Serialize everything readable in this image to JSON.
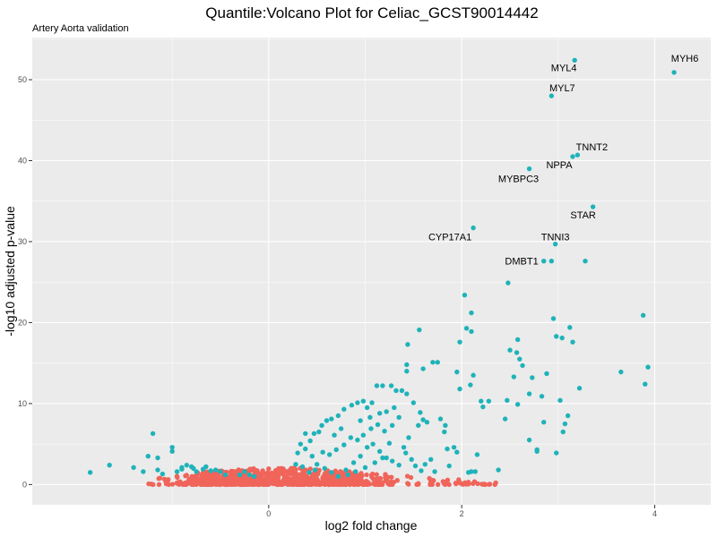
{
  "chart_data": {
    "type": "scatter",
    "title": "Quantile:Volcano Plot for Celiac_GCST90014442",
    "subtitle": "Artery Aorta validation",
    "xlabel": "log2 fold change",
    "ylabel": "-log10 adjusted p-value",
    "xlim": [
      -2.45,
      4.58
    ],
    "ylim": [
      -2.5,
      55.2
    ],
    "x_ticks": [
      0,
      2,
      4
    ],
    "y_ticks": [
      0,
      10,
      20,
      30,
      40,
      50
    ],
    "grid": true,
    "legend": "none",
    "colors": {
      "significant": "#1EB3B9",
      "not_significant": "#F0645A",
      "panel": "#EBEBEB",
      "grid": "#ffffff"
    },
    "labeled_points": [
      {
        "label": "MYH6",
        "x": 4.2,
        "y": 50.9
      },
      {
        "label": "MYL4",
        "x": 3.17,
        "y": 52.4
      },
      {
        "label": "MYL7",
        "x": 2.93,
        "y": 48.0
      },
      {
        "label": "TNNT2",
        "x": 3.2,
        "y": 40.7
      },
      {
        "label": "NPPA",
        "x": 3.15,
        "y": 40.5
      },
      {
        "label": "MYBPC3",
        "x": 2.7,
        "y": 39.0
      },
      {
        "label": "STAR",
        "x": 3.36,
        "y": 34.3
      },
      {
        "label": "CYP17A1",
        "x": 2.12,
        "y": 31.7
      },
      {
        "label": "TNNI3",
        "x": 2.97,
        "y": 29.7
      },
      {
        "label": "DMBT1",
        "x": 2.85,
        "y": 27.6
      }
    ],
    "significant_points": [
      [
        2.93,
        27.6
      ],
      [
        3.28,
        27.6
      ],
      [
        2.48,
        24.9
      ],
      [
        2.03,
        23.4
      ],
      [
        2.1,
        21.2
      ],
      [
        2.05,
        19.3
      ],
      [
        2.1,
        18.9
      ],
      [
        2.95,
        20.5
      ],
      [
        3.12,
        19.4
      ],
      [
        2.98,
        18.3
      ],
      [
        3.04,
        18.1
      ],
      [
        3.15,
        17.6
      ],
      [
        3.88,
        20.9
      ],
      [
        1.56,
        19.1
      ],
      [
        1.44,
        17.3
      ],
      [
        1.98,
        17.6
      ],
      [
        2.58,
        17.9
      ],
      [
        2.5,
        16.6
      ],
      [
        2.57,
        16.3
      ],
      [
        2.6,
        15.5
      ],
      [
        2.63,
        14.7
      ],
      [
        2.54,
        13.3
      ],
      [
        2.73,
        13.2
      ],
      [
        2.88,
        13.7
      ],
      [
        3.65,
        13.9
      ],
      [
        3.93,
        14.5
      ],
      [
        3.9,
        12.4
      ],
      [
        1.7,
        15.1
      ],
      [
        1.75,
        15.1
      ],
      [
        1.43,
        14.8
      ],
      [
        1.43,
        14.0
      ],
      [
        1.6,
        14.3
      ],
      [
        1.95,
        13.9
      ],
      [
        2.12,
        13.5
      ],
      [
        2.09,
        12.3
      ],
      [
        1.98,
        11.8
      ],
      [
        2.2,
        10.3
      ],
      [
        2.28,
        10.3
      ],
      [
        2.22,
        9.6
      ],
      [
        2.47,
        10.4
      ],
      [
        2.7,
        11.2
      ],
      [
        2.83,
        10.9
      ],
      [
        3.02,
        10.4
      ],
      [
        3.22,
        11.9
      ],
      [
        2.58,
        9.9
      ],
      [
        2.45,
        8.1
      ],
      [
        2.85,
        7.7
      ],
      [
        3.07,
        7.5
      ],
      [
        3.1,
        8.5
      ],
      [
        3.05,
        6.5
      ],
      [
        2.7,
        5.5
      ],
      [
        2.78,
        4.3
      ],
      [
        2.98,
        3.9
      ],
      [
        2.78,
        4.1
      ],
      [
        2.38,
        1.8
      ],
      [
        2.16,
        3.7
      ],
      [
        2.14,
        1.6
      ],
      [
        2.07,
        1.5
      ],
      [
        2.1,
        1.6
      ],
      [
        1.87,
        2.3
      ],
      [
        1.95,
        4.0
      ],
      [
        1.92,
        4.6
      ],
      [
        1.85,
        4.4
      ],
      [
        1.83,
        7.3
      ],
      [
        1.78,
        8.1
      ],
      [
        1.82,
        6.5
      ],
      [
        1.6,
        8.0
      ],
      [
        1.64,
        7.7
      ],
      [
        1.55,
        7.3
      ],
      [
        1.57,
        8.9
      ],
      [
        1.5,
        10.1
      ],
      [
        1.43,
        11.2
      ],
      [
        1.38,
        11.6
      ],
      [
        1.32,
        11.6
      ],
      [
        1.27,
        12.2
      ],
      [
        1.18,
        12.2
      ],
      [
        1.12,
        12.2
      ],
      [
        1.07,
        10.1
      ],
      [
        1.02,
        9.5
      ],
      [
        0.98,
        10.3
      ],
      [
        0.92,
        10.1
      ],
      [
        0.86,
        9.8
      ],
      [
        0.78,
        9.3
      ],
      [
        0.72,
        8.5
      ],
      [
        0.65,
        8.1
      ],
      [
        0.6,
        7.9
      ],
      [
        0.55,
        7.3
      ],
      [
        0.52,
        6.5
      ],
      [
        0.47,
        6.3
      ],
      [
        0.43,
        5.4
      ],
      [
        0.38,
        6.3
      ],
      [
        0.33,
        5.0
      ],
      [
        0.3,
        3.9
      ],
      [
        0.38,
        4.4
      ],
      [
        0.45,
        3.5
      ],
      [
        0.5,
        2.5
      ],
      [
        0.58,
        2.0
      ],
      [
        0.65,
        1.5
      ],
      [
        0.72,
        1.0
      ],
      [
        0.8,
        1.8
      ],
      [
        0.88,
        2.7
      ],
      [
        0.95,
        3.5
      ],
      [
        1.02,
        4.6
      ],
      [
        1.08,
        5.0
      ],
      [
        1.15,
        4.1
      ],
      [
        1.22,
        3.3
      ],
      [
        1.28,
        2.9
      ],
      [
        1.35,
        2.4
      ],
      [
        1.42,
        3.9
      ],
      [
        1.48,
        3.1
      ],
      [
        1.52,
        2.3
      ],
      [
        1.58,
        1.7
      ],
      [
        1.62,
        2.5
      ],
      [
        1.68,
        3.1
      ],
      [
        1.72,
        1.6
      ],
      [
        1.35,
        8.3
      ],
      [
        1.28,
        7.3
      ],
      [
        1.2,
        6.6
      ],
      [
        1.13,
        7.4
      ],
      [
        1.06,
        6.9
      ],
      [
        0.98,
        6.1
      ],
      [
        0.92,
        5.5
      ],
      [
        0.85,
        5.8
      ],
      [
        0.78,
        4.9
      ],
      [
        0.7,
        4.3
      ],
      [
        0.63,
        3.7
      ],
      [
        0.56,
        4.0
      ],
      [
        0.48,
        1.8
      ],
      [
        0.42,
        1.5
      ],
      [
        0.35,
        2.2
      ],
      [
        0.28,
        2.5
      ],
      [
        1.45,
        5.8
      ],
      [
        1.4,
        4.6
      ],
      [
        1.25,
        5.1
      ],
      [
        1.18,
        3.3
      ],
      [
        1.1,
        2.7
      ],
      [
        1.0,
        2.1
      ],
      [
        0.9,
        1.6
      ],
      [
        0.82,
        1.2
      ],
      [
        1.3,
        9.5
      ],
      [
        1.22,
        9.0
      ],
      [
        1.15,
        8.8
      ],
      [
        1.05,
        8.3
      ],
      [
        0.95,
        7.9
      ],
      [
        0.75,
        6.9
      ],
      [
        0.68,
        6.1
      ],
      [
        -1.2,
        6.3
      ],
      [
        -1.0,
        4.6
      ],
      [
        -1.0,
        4.1
      ],
      [
        -1.15,
        3.3
      ],
      [
        -1.25,
        3.5
      ],
      [
        -1.3,
        1.6
      ],
      [
        -1.4,
        2.1
      ],
      [
        -1.15,
        1.8
      ],
      [
        -1.1,
        1.3
      ],
      [
        -0.95,
        1.6
      ],
      [
        -0.9,
        2.1
      ],
      [
        -0.8,
        2.2
      ],
      [
        -0.75,
        1.6
      ],
      [
        -0.65,
        2.2
      ],
      [
        -0.6,
        1.7
      ],
      [
        -0.55,
        1.8
      ],
      [
        -0.5,
        1.6
      ],
      [
        -0.45,
        1.2
      ],
      [
        -0.3,
        1.2
      ],
      [
        -0.25,
        1.6
      ],
      [
        -0.2,
        1.2
      ],
      [
        -0.15,
        1.0
      ],
      [
        -1.65,
        2.4
      ],
      [
        -1.85,
        1.5
      ],
      [
        -0.9,
        1.9
      ],
      [
        -0.68,
        1.9
      ],
      [
        -0.78,
        2.0
      ],
      [
        -0.85,
        2.4
      ]
    ],
    "nonsignificant_cloud": {
      "x_range": [
        -1.25,
        2.4
      ],
      "y_max": 3.4,
      "count": 900
    }
  }
}
